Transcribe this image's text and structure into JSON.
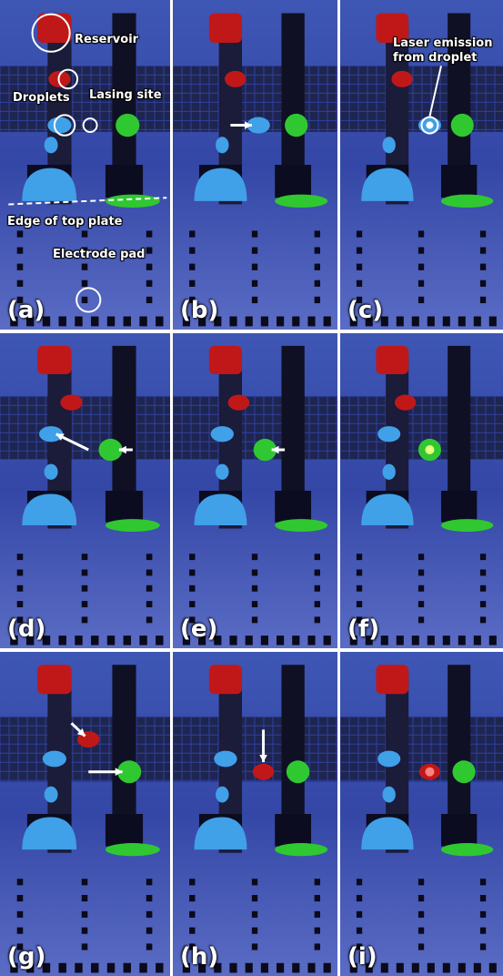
{
  "figure": {
    "panels": [
      {
        "label": "(a)"
      },
      {
        "label": "(b)"
      },
      {
        "label": "(c)"
      },
      {
        "label": "(d)"
      },
      {
        "label": "(e)"
      },
      {
        "label": "(f)"
      },
      {
        "label": "(g)"
      },
      {
        "label": "(h)"
      },
      {
        "label": "(i)"
      }
    ],
    "annotations": {
      "reservoir": "Reservoir",
      "droplets": "Droplets",
      "lasing_site": "Lasing site",
      "edge_of_top_plate": "Edge of top plate",
      "electrode_pad": "Electrode pad",
      "laser_emission_line1": "Laser emission",
      "laser_emission_line2": "from droplet"
    },
    "colors": {
      "background_blue": "#3848a8",
      "red_droplet": "#c01818",
      "blue_droplet": "#40a0e8",
      "green_droplet": "#30c830",
      "divider": "#ffffff"
    }
  }
}
